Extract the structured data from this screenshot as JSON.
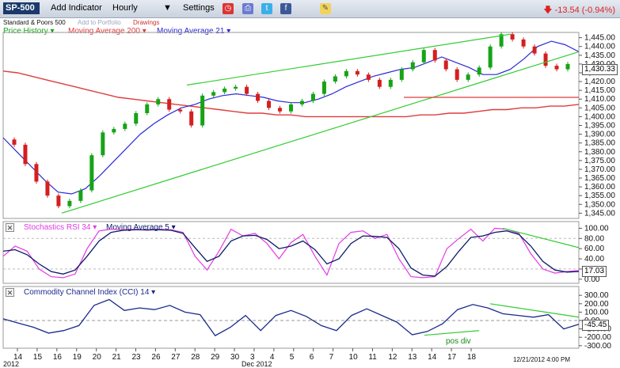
{
  "toolbar": {
    "symbol": "SP-500",
    "add_indicator": "Add Indicator",
    "interval": "Hourly",
    "settings": "Settings",
    "change": "-13.54 (-0.94%)",
    "change_color": "#dd2222",
    "icons": [
      "alarm-clock-icon",
      "print-icon",
      "twitter-icon",
      "facebook-icon",
      "note-icon"
    ]
  },
  "subtitle": {
    "name": "Standard & Poors 500",
    "add_portfolio": "Add to Portfolio",
    "drawings": "Drawings"
  },
  "legends": {
    "price_history": "Price History",
    "ma200": "Moving Average 200",
    "ma21": "Moving Average 21",
    "stoch": "Stochastics RSI 34",
    "stoch_ma": "Moving Average 5",
    "cci": "Commodity Channel Index (CCI) 14"
  },
  "colors": {
    "price_up": "#16a316",
    "price_down": "#d41f1f",
    "ma200": "#e03c3c",
    "ma21": "#2a2ad6",
    "trendline": "#33cc33",
    "stoch": "#e23ae2",
    "stoch_ma": "#0d1a66",
    "cci": "#1b2a8c"
  },
  "annotations": {
    "pos_div": "pos div",
    "price_readout": "1,430.33",
    "stoch_readout": "17.03",
    "cci_readout": "-45.45",
    "timestamp": "12/21/2012 4:00 PM"
  },
  "x_axis": {
    "labels": [
      "14",
      "15",
      "16",
      "19",
      "20",
      "21",
      "23",
      "26",
      "27",
      "28",
      "29",
      "30",
      "3",
      "4",
      "5",
      "6",
      "7",
      "10",
      "11",
      "12",
      "13",
      "14",
      "17",
      "18"
    ],
    "sublabels": [
      "2012",
      "Dec 2012"
    ]
  },
  "chart_data": [
    {
      "type": "line",
      "title": "",
      "price_history": [
        1387,
        1384,
        1373,
        1363,
        1355,
        1349,
        1352,
        1358,
        1378,
        1391,
        1393,
        1396,
        1402,
        1407,
        1410,
        1404,
        1403,
        1395,
        1412,
        1414,
        1416,
        1417,
        1413,
        1409,
        1405,
        1403,
        1407,
        1409,
        1413,
        1420,
        1423,
        1426,
        1424,
        1421,
        1417,
        1421,
        1427,
        1431,
        1438,
        1432,
        1427,
        1421,
        1424,
        1428,
        1440,
        1447,
        1444,
        1440,
        1436,
        1429,
        1427,
        1430
      ],
      "moving_average_200": [
        1426,
        1425,
        1423,
        1421,
        1419,
        1417,
        1415,
        1413,
        1411,
        1410,
        1409,
        1408,
        1407,
        1406,
        1405,
        1404,
        1403,
        1402,
        1402,
        1401,
        1401,
        1400,
        1400,
        1400,
        1400,
        1400,
        1400,
        1400,
        1400,
        1401,
        1401,
        1402,
        1402,
        1403,
        1404,
        1404,
        1405,
        1405,
        1406,
        1406,
        1407
      ],
      "moving_average_21": [
        1388,
        1380,
        1372,
        1364,
        1357,
        1356,
        1359,
        1366,
        1374,
        1382,
        1390,
        1396,
        1401,
        1405,
        1407,
        1410,
        1412,
        1413,
        1412,
        1411,
        1409,
        1408,
        1408,
        1410,
        1413,
        1417,
        1420,
        1423,
        1425,
        1427,
        1428,
        1431,
        1434,
        1431,
        1428,
        1424,
        1424,
        1427,
        1433,
        1440,
        1443,
        1441,
        1437
      ],
      "trendlines": [
        {
          "from": 1345,
          "to": 1437
        },
        {
          "from": 1418,
          "to": 1447
        },
        {
          "from": 1411,
          "to": 1411
        }
      ],
      "ylim": [
        1342,
        1448
      ],
      "yticks": [
        1345,
        1350,
        1355,
        1360,
        1365,
        1370,
        1375,
        1380,
        1385,
        1390,
        1395,
        1400,
        1405,
        1410,
        1415,
        1420,
        1425,
        1430,
        1435,
        1440,
        1445
      ]
    },
    {
      "type": "line",
      "title": "",
      "stoch_rsi": [
        45,
        65,
        55,
        20,
        5,
        3,
        10,
        60,
        95,
        98,
        97,
        98,
        96,
        98,
        97,
        92,
        45,
        18,
        55,
        98,
        85,
        90,
        70,
        40,
        72,
        88,
        45,
        8,
        70,
        92,
        95,
        80,
        88,
        40,
        5,
        3,
        5,
        60,
        80,
        98,
        75,
        100,
        98,
        90,
        50,
        20,
        12,
        15,
        17
      ],
      "moving_average_5": [
        55,
        58,
        48,
        30,
        15,
        10,
        18,
        45,
        75,
        92,
        96,
        97,
        97,
        97,
        96,
        90,
        62,
        35,
        45,
        75,
        85,
        86,
        78,
        60,
        65,
        75,
        58,
        30,
        40,
        70,
        85,
        84,
        82,
        60,
        22,
        8,
        6,
        25,
        55,
        82,
        85,
        92,
        95,
        88,
        65,
        35,
        18,
        14,
        15
      ],
      "ylim": [
        -5,
        110
      ],
      "yticks": [
        0,
        20,
        40,
        60,
        80,
        100
      ]
    },
    {
      "type": "line",
      "title": "",
      "cci": [
        20,
        -30,
        -80,
        -150,
        -120,
        -60,
        180,
        250,
        120,
        150,
        130,
        180,
        100,
        70,
        -180,
        -80,
        60,
        -120,
        60,
        120,
        50,
        -60,
        -120,
        60,
        140,
        60,
        -20,
        -170,
        -130,
        -40,
        130,
        190,
        150,
        80,
        60,
        40,
        70,
        -100,
        -45
      ],
      "ylim": [
        -330,
        330
      ],
      "yticks": [
        -300,
        -200,
        -100,
        0,
        100,
        200,
        300
      ]
    }
  ]
}
